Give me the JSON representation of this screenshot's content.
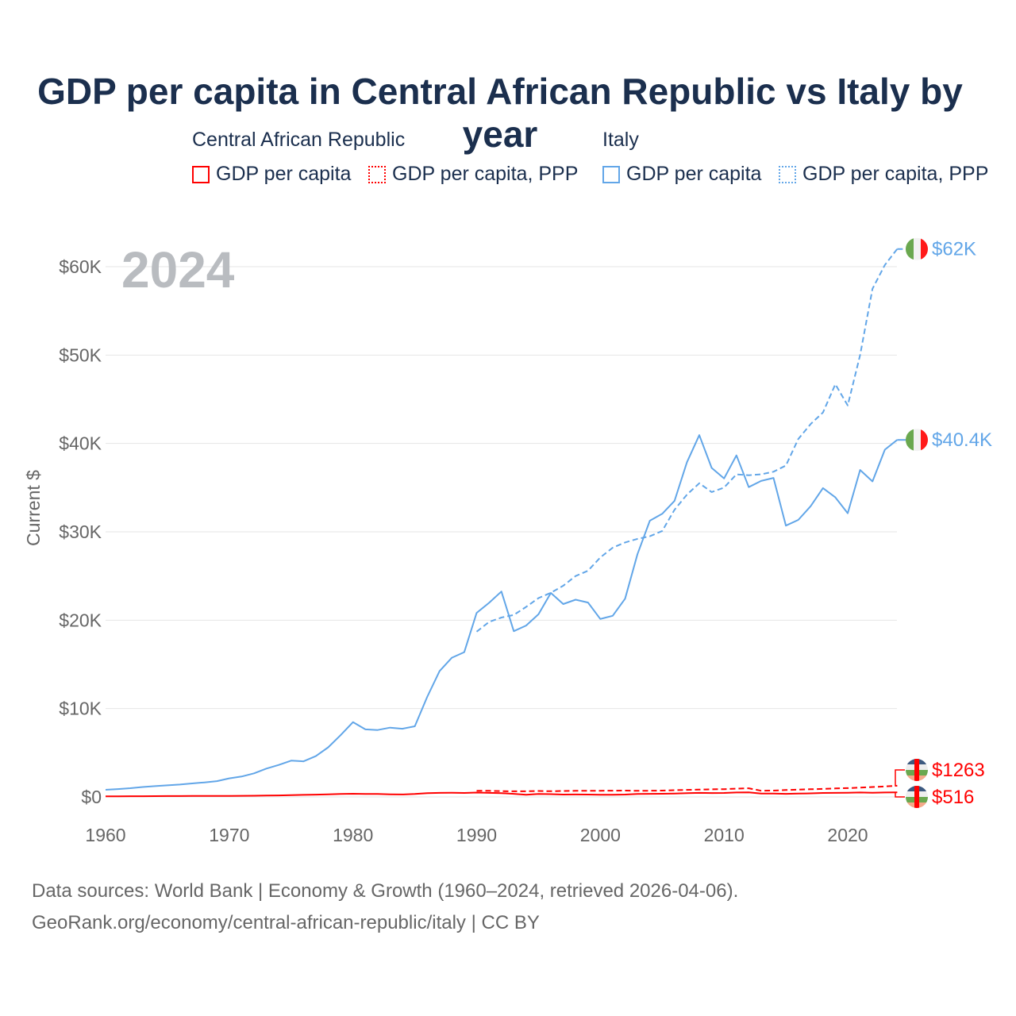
{
  "title": "GDP per capita in Central African Republic vs Italy by year",
  "legend": {
    "groups": [
      {
        "name": "Central African Republic",
        "items": [
          "GDP per capita",
          "GDP per capita, PPP"
        ],
        "color": "#ff0000"
      },
      {
        "name": "Italy",
        "items": [
          "GDP per capita",
          "GDP per capita, PPP"
        ],
        "color": "#62a6e8"
      }
    ]
  },
  "footer": {
    "line1": "Data sources: World Bank | Economy & Growth (1960–2024, retrieved 2026-04-06).",
    "line2": "GeoRank.org/economy/central-african-republic/italy | CC BY"
  },
  "chart_data": {
    "type": "line",
    "title": "GDP per capita in Central African Republic vs Italy by year",
    "ylabel": "Current $",
    "xlabel": "",
    "year_label": "2024",
    "xlim": [
      1960,
      2024
    ],
    "ylim": [
      0,
      60000
    ],
    "x_ticks": [
      1960,
      1970,
      1980,
      1990,
      2000,
      2010,
      2020
    ],
    "x_tick_labels": [
      "1960",
      "1970",
      "1980",
      "1990",
      "2000",
      "2010",
      "2020"
    ],
    "y_ticks": [
      0,
      10000,
      20000,
      30000,
      40000,
      50000,
      60000
    ],
    "y_tick_labels": [
      "$0",
      "$10K",
      "$20K",
      "$30K",
      "$40K",
      "$50K",
      "$60K"
    ],
    "grid": true,
    "series": [
      {
        "name": "Italy GDP per capita",
        "color": "#62a6e8",
        "dash": false,
        "start": 1960,
        "end_label": "$40.4K",
        "values": [
          804,
          887,
          990,
          1126,
          1223,
          1307,
          1400,
          1526,
          1644,
          1785,
          2106,
          2309,
          2671,
          3205,
          3623,
          4103,
          4023,
          4614,
          5615,
          6990,
          8457,
          7640,
          7568,
          7837,
          7716,
          7991,
          11314,
          14245,
          15756,
          16386,
          20826,
          21957,
          23244,
          18751,
          19391,
          20664,
          23082,
          21830,
          22317,
          21999,
          20138,
          20499,
          22427,
          27466,
          31259,
          32043,
          33501,
          37867,
          40944,
          37227,
          36036,
          38650,
          35054,
          35760,
          36100,
          30700,
          31350,
          32900,
          34950,
          33900,
          32100,
          37000,
          35700,
          39300,
          40400
        ]
      },
      {
        "name": "Italy GDP per capita, PPP",
        "color": "#62a6e8",
        "dash": true,
        "start": 1990,
        "end_label": "$62K",
        "values": [
          18700,
          19800,
          20300,
          20600,
          21500,
          22500,
          23100,
          23900,
          25000,
          25600,
          27100,
          28200,
          28800,
          29200,
          29500,
          30100,
          32500,
          34200,
          35500,
          34500,
          35000,
          36500,
          36400,
          36500,
          36800,
          37500,
          40500,
          42200,
          43500,
          46700,
          44300,
          50000,
          57500,
          60200,
          62000
        ]
      },
      {
        "name": "Central African Republic GDP per capita",
        "color": "#ff0000",
        "dash": false,
        "start": 1960,
        "end_label": "$516",
        "values": [
          70,
          75,
          80,
          85,
          90,
          95,
          100,
          105,
          110,
          115,
          120,
          125,
          135,
          150,
          170,
          200,
          230,
          260,
          290,
          330,
          360,
          340,
          330,
          300,
          280,
          330,
          420,
          460,
          470,
          450,
          490,
          460,
          430,
          350,
          250,
          330,
          310,
          270,
          280,
          270,
          240,
          250,
          270,
          330,
          350,
          360,
          380,
          420,
          460,
          440,
          450,
          500,
          520,
          380,
          390,
          350,
          380,
          400,
          450,
          460,
          470,
          500,
          480,
          500,
          516
        ]
      },
      {
        "name": "Central African Republic GDP per capita, PPP",
        "color": "#ff0000",
        "dash": true,
        "start": 1990,
        "end_label": "$1263",
        "values": [
          700,
          690,
          660,
          640,
          640,
          670,
          650,
          670,
          690,
          700,
          700,
          710,
          720,
          690,
          700,
          720,
          760,
          800,
          830,
          860,
          880,
          930,
          980,
          700,
          720,
          780,
          830,
          870,
          910,
          960,
          1000,
          1050,
          1120,
          1190,
          1263
        ]
      }
    ]
  }
}
